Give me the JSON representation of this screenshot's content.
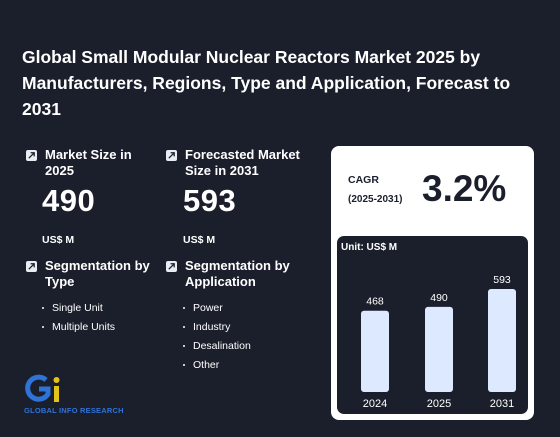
{
  "title": "Global Small Modular Nuclear Reactors Market 2025 by Manufacturers, Regions, Type and Application, Forecast to 2031",
  "market_size": {
    "label": "Market Size in 2025",
    "value": "490",
    "unit": "US$ M"
  },
  "forecast": {
    "label": "Forecasted Market Size in 2031",
    "value": "593",
    "unit": "US$ M"
  },
  "seg_type": {
    "label": "Segmentation by Type",
    "items": [
      "Single Unit",
      "Multiple Units"
    ]
  },
  "seg_app": {
    "label": "Segmentation by Application",
    "items": [
      "Power",
      "Industry",
      "Desalination",
      "Other"
    ]
  },
  "cagr": {
    "label": "CAGR",
    "years": "(2025-2031)",
    "value": "3.2%"
  },
  "logo": {
    "text": "GLOBAL INFO RESEARCH"
  },
  "colors": {
    "background": "#1b1f2c",
    "bar": "#dde9ff",
    "accent": "#2f72d8",
    "card": "#ffffff"
  },
  "icons": [
    "trend-up-icon"
  ],
  "chart_data": {
    "type": "bar",
    "unit_label": "Unit: US$ M",
    "categories": [
      "2024",
      "2025",
      "2031"
    ],
    "values": [
      468,
      490,
      593
    ],
    "data_labels": [
      "468",
      "490",
      "593"
    ]
  }
}
